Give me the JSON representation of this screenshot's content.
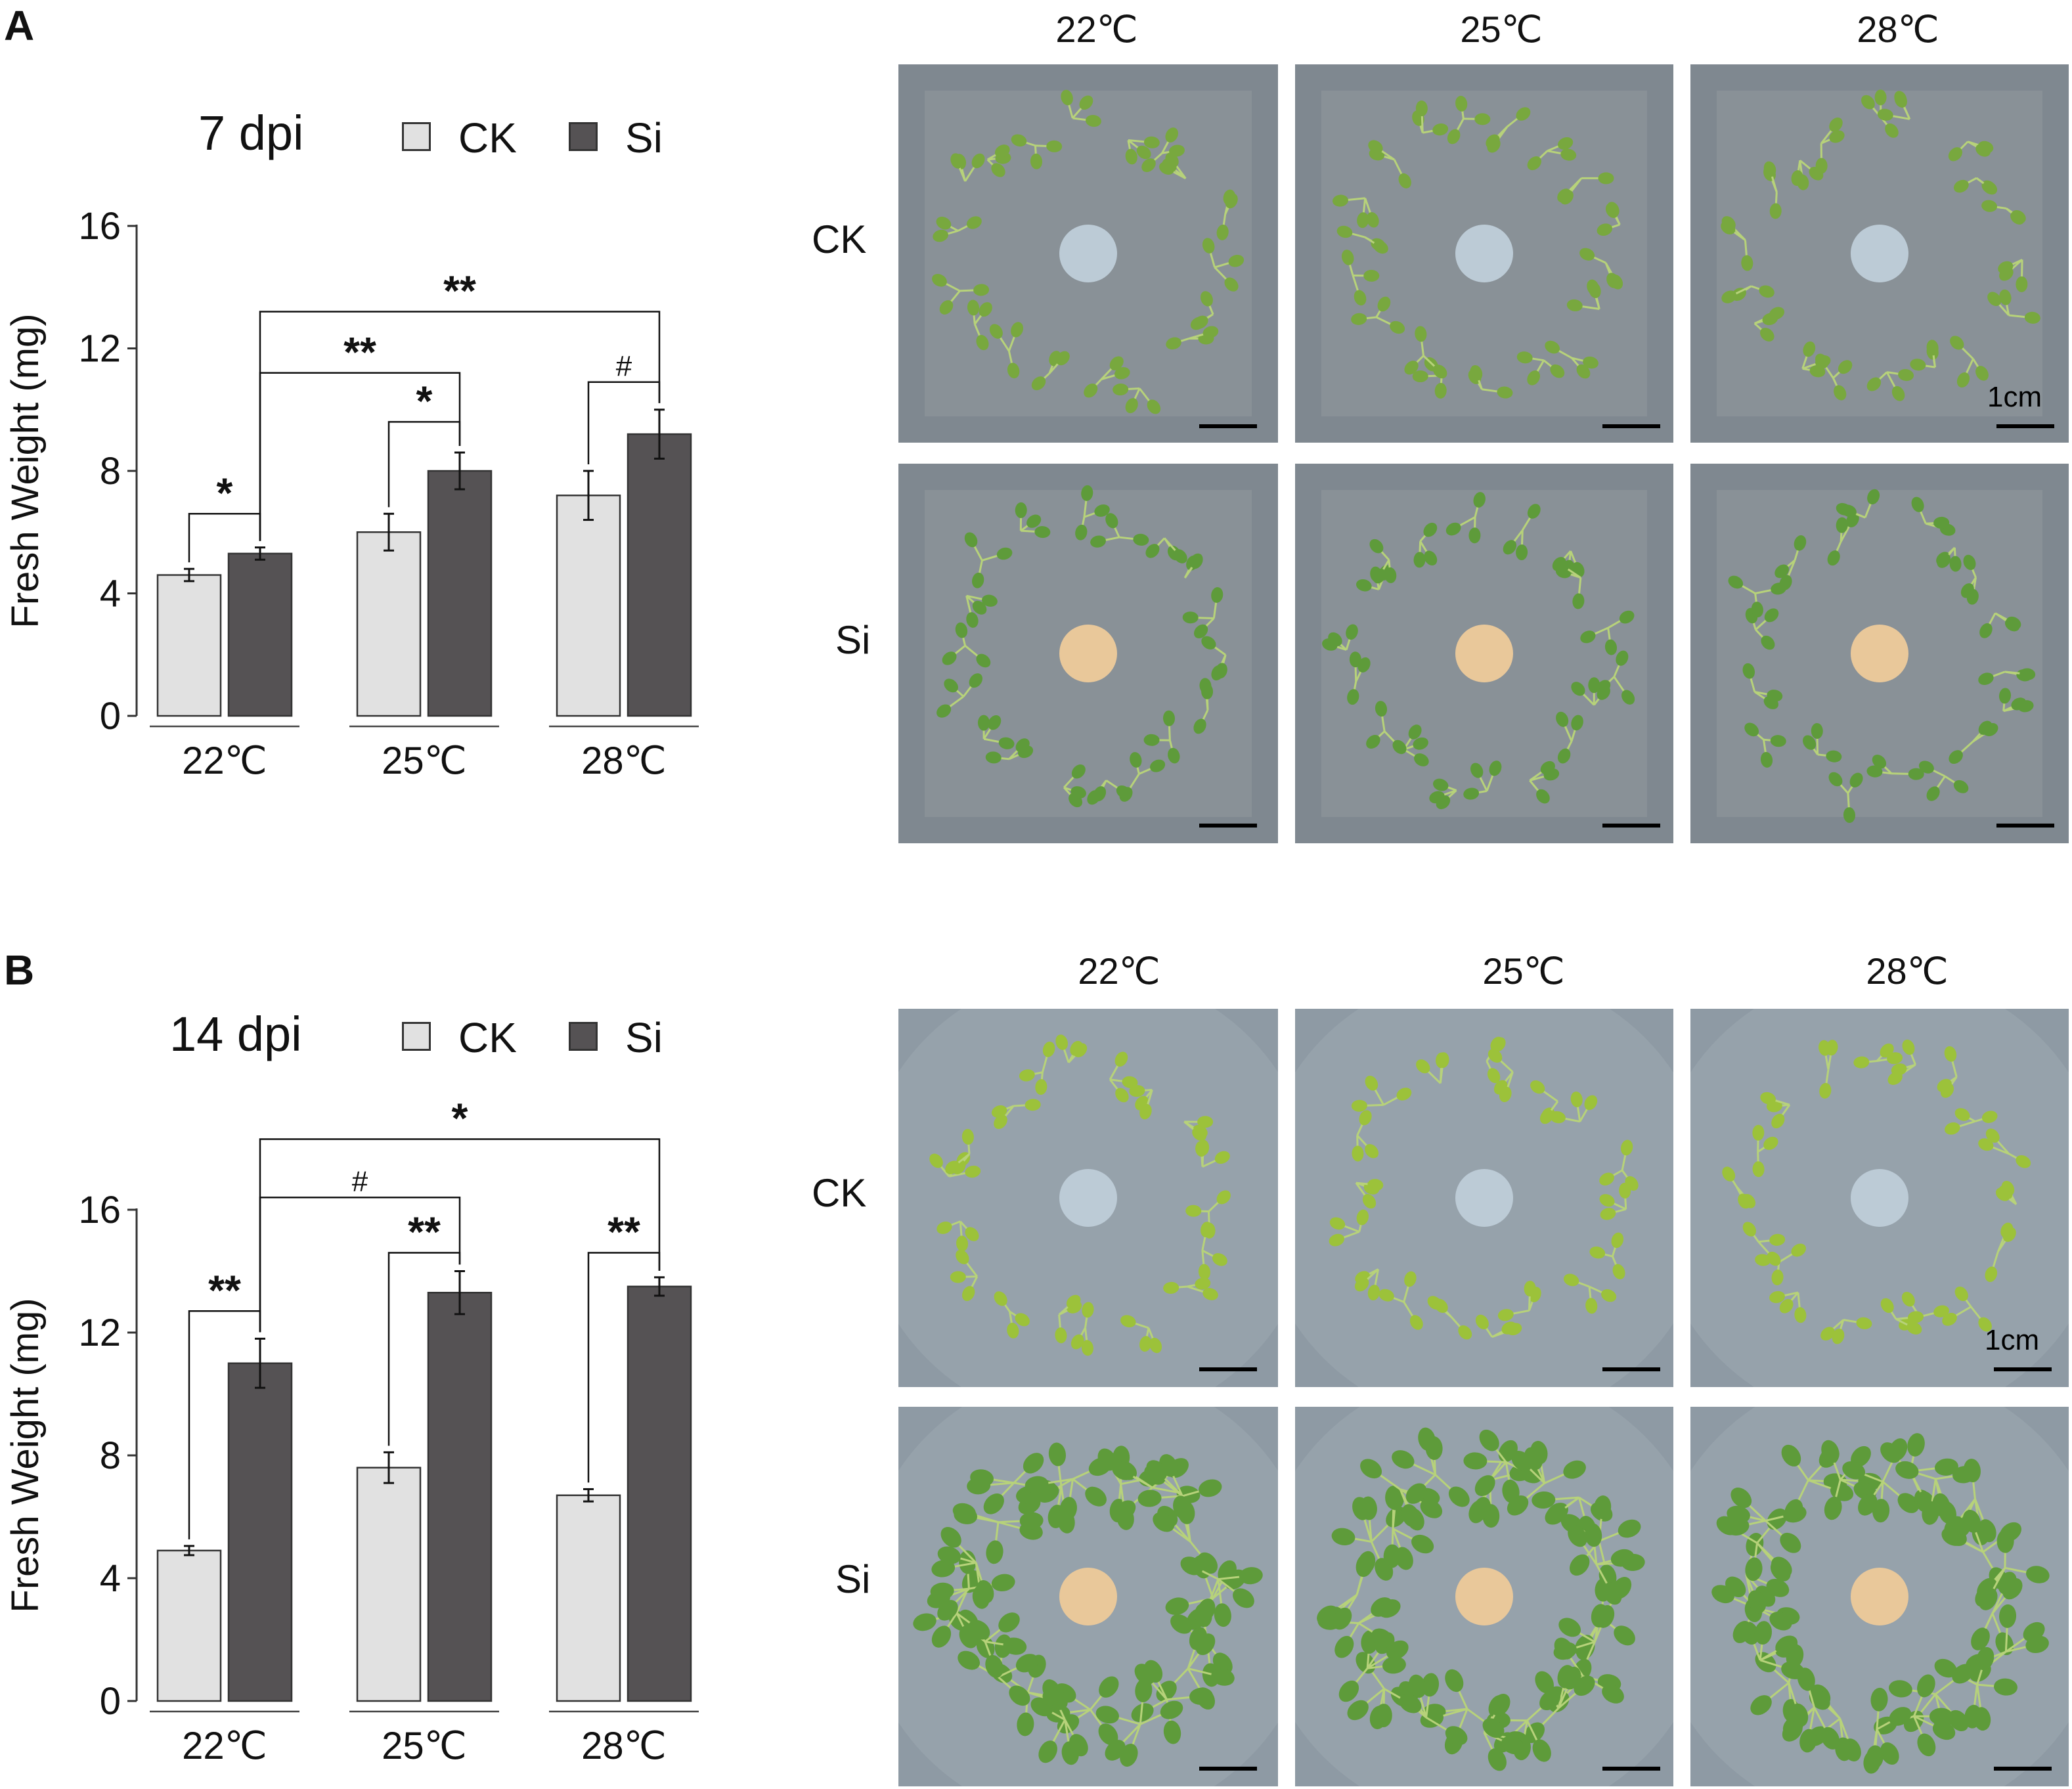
{
  "panels": [
    {
      "letter": "A",
      "chart_data": {
        "type": "bar",
        "title": "7 dpi",
        "ylabel": "Fresh Weight (mg)",
        "xlabel": "",
        "ylim": [
          0,
          16
        ],
        "yticks": [
          "0",
          "4",
          "8",
          "12",
          "16"
        ],
        "categories": [
          "22℃",
          "25℃",
          "28℃"
        ],
        "legend_position": "top",
        "series": [
          {
            "name": "CK",
            "color": "#e1e1e1",
            "values": [
              4.6,
              6.0,
              7.2
            ],
            "errors": [
              0.2,
              0.6,
              0.8
            ]
          },
          {
            "name": "Si",
            "color": "#555254",
            "values": [
              5.3,
              8.0,
              9.2
            ],
            "errors": [
              0.2,
              0.6,
              0.8
            ]
          }
        ],
        "significance": [
          {
            "label": "*",
            "from": [
              0,
              0
            ],
            "to": [
              0,
              1
            ],
            "level": 6.6
          },
          {
            "label": "*",
            "from": [
              1,
              0
            ],
            "to": [
              1,
              1
            ],
            "level": 9.6
          },
          {
            "label": "#",
            "from": [
              2,
              0
            ],
            "to": [
              2,
              1
            ],
            "level": 10.9
          },
          {
            "label": "**",
            "from": [
              0,
              1
            ],
            "to": [
              1,
              1
            ],
            "level": 11.2
          },
          {
            "label": "**",
            "from": [
              0,
              1
            ],
            "to": [
              2,
              1
            ],
            "level": 13.2
          }
        ]
      },
      "photos": {
        "col_labels": [
          "22℃",
          "25℃",
          "28℃"
        ],
        "row_labels": [
          "CK",
          "Si"
        ],
        "scale_label": "1cm"
      }
    },
    {
      "letter": "B",
      "chart_data": {
        "type": "bar",
        "title": "14 dpi",
        "ylabel": "Fresh Weight (mg)",
        "xlabel": "",
        "ylim": [
          0,
          16
        ],
        "yticks": [
          "0",
          "4",
          "8",
          "12",
          "16"
        ],
        "categories": [
          "22℃",
          "25℃",
          "28℃"
        ],
        "legend_position": "top",
        "series": [
          {
            "name": "CK",
            "color": "#e1e1e1",
            "values": [
              4.9,
              7.6,
              6.7
            ],
            "errors": [
              0.15,
              0.5,
              0.2
            ]
          },
          {
            "name": "Si",
            "color": "#555254",
            "values": [
              11.0,
              13.3,
              13.5
            ],
            "errors": [
              0.8,
              0.7,
              0.3
            ]
          }
        ],
        "significance": [
          {
            "label": "**",
            "from": [
              0,
              0
            ],
            "to": [
              0,
              1
            ],
            "level": 12.7
          },
          {
            "label": "**",
            "from": [
              1,
              0
            ],
            "to": [
              1,
              1
            ],
            "level": 14.6
          },
          {
            "label": "**",
            "from": [
              2,
              0
            ],
            "to": [
              2,
              1
            ],
            "level": 14.6
          },
          {
            "label": "#",
            "from": [
              0,
              1
            ],
            "to": [
              1,
              1
            ],
            "level": 16.4
          },
          {
            "label": "*",
            "from": [
              0,
              1
            ],
            "to": [
              2,
              1
            ],
            "level": 18.3
          }
        ]
      },
      "photos": {
        "col_labels": [
          "22℃",
          "25℃",
          "28℃"
        ],
        "row_labels": [
          "CK",
          "Si"
        ],
        "scale_label": "1cm"
      }
    }
  ]
}
